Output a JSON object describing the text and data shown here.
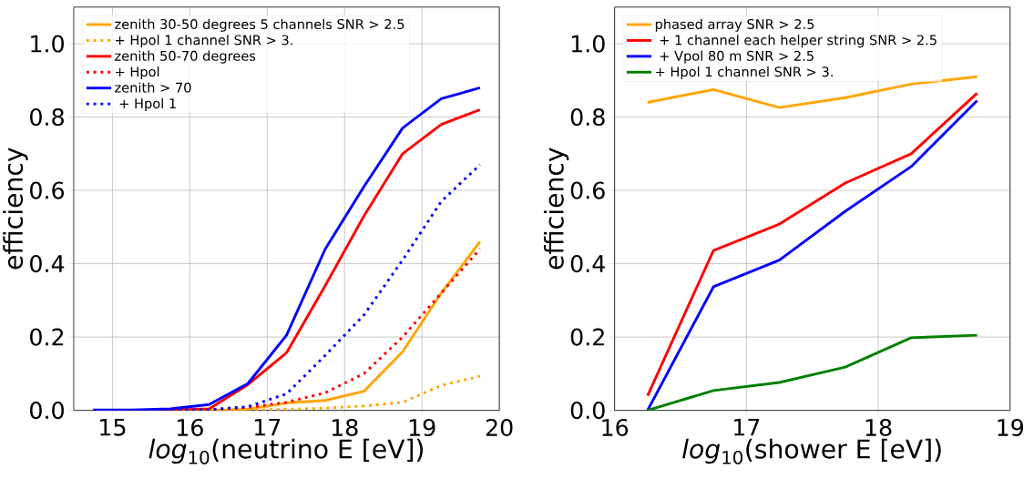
{
  "chart_data": [
    {
      "type": "line",
      "xlabel": "*log*$_{10}$(neutrino E [eV])",
      "ylabel": "efficiency",
      "x": [
        14.75,
        15.25,
        15.75,
        16.25,
        16.75,
        17.25,
        17.75,
        18.25,
        18.75,
        19.25,
        19.75
      ],
      "xlim": [
        14.5,
        20
      ],
      "ylim": [
        0,
        1.1
      ],
      "xticks": [
        15,
        16,
        17,
        18,
        19,
        20
      ],
      "yticks": [
        {
          "value": 0,
          "label": "0.0"
        },
        {
          "value": 0.2,
          "label": "0.2"
        },
        {
          "value": 0.4,
          "label": "0.4"
        },
        {
          "value": 0.6,
          "label": "0.6"
        },
        {
          "value": 0.8,
          "label": "0.8"
        },
        {
          "value": 1.0,
          "label": "1.0"
        }
      ],
      "grid": true,
      "legend": "top left",
      "series": [
        {
          "name": "zenith 30-50 degrees 5 channels SNR > 2.5",
          "color": "#ffa500",
          "line_style": "solid",
          "values": [
            null,
            null,
            0,
            0,
            0.003,
            0.02,
            0.027,
            0.052,
            0.16,
            0.32,
            0.46
          ]
        },
        {
          "name": "+ Hpol 1 channel SNR > 3.",
          "color": "#ffa500",
          "line_style": "dotted",
          "values": [
            null,
            null,
            0,
            0,
            0.001,
            0.003,
            0.006,
            0.012,
            0.022,
            0.068,
            0.093
          ]
        },
        {
          "name": "zenith 50-70 degrees",
          "color": "#ff0000",
          "line_style": "solid",
          "values": [
            0,
            0,
            0.001,
            0.004,
            0.07,
            0.157,
            0.34,
            0.53,
            0.7,
            0.78,
            0.82
          ]
        },
        {
          "name": "+ Hpol",
          "color": "#ff0000",
          "line_style": "dotted",
          "values": [
            0,
            0,
            0,
            0.002,
            0.008,
            0.022,
            0.048,
            0.1,
            0.2,
            0.32,
            0.44
          ]
        },
        {
          "name": "zenith > 70",
          "color": "#0000ff",
          "line_style": "solid",
          "values": [
            0.001,
            0.001,
            0.004,
            0.016,
            0.073,
            0.205,
            0.44,
            0.61,
            0.77,
            0.85,
            0.88
          ]
        },
        {
          "name": " + Hpol 1",
          "color": "#0000ff",
          "line_style": "dotted",
          "values": [
            0,
            0,
            0,
            0.002,
            0.01,
            0.045,
            0.15,
            0.26,
            0.41,
            0.57,
            0.67
          ]
        }
      ]
    },
    {
      "type": "line",
      "xlabel": "*log*$_{10}$(shower E [eV])",
      "ylabel": "efficiency",
      "x": [
        16.25,
        16.75,
        17.25,
        17.75,
        18.25,
        18.75
      ],
      "xlim": [
        16,
        19
      ],
      "ylim": [
        0,
        1.1
      ],
      "xticks": [
        16,
        17,
        18,
        19
      ],
      "yticks": [
        {
          "value": 0,
          "label": "0.0"
        },
        {
          "value": 0.2,
          "label": "0.2"
        },
        {
          "value": 0.4,
          "label": "0.4"
        },
        {
          "value": 0.6,
          "label": "0.6"
        },
        {
          "value": 0.8,
          "label": "0.8"
        },
        {
          "value": 1.0,
          "label": "1.0"
        }
      ],
      "grid": true,
      "legend": "top left",
      "series": [
        {
          "name": "phased array SNR > 2.5",
          "color": "#ffa500",
          "line_style": "solid",
          "values": [
            0.84,
            0.875,
            0.826,
            0.853,
            0.89,
            0.91
          ]
        },
        {
          "name": " + 1 channel each helper string SNR > 2.5",
          "color": "#ff0000",
          "line_style": "solid",
          "values": [
            0.04,
            0.436,
            0.508,
            0.62,
            0.7,
            0.865
          ]
        },
        {
          "name": " + Vpol 80 m SNR > 2.5",
          "color": "#0000ff",
          "line_style": "solid",
          "values": [
            0.0,
            0.337,
            0.41,
            0.543,
            0.665,
            0.845
          ]
        },
        {
          "name": "+ Hpol 1 channel SNR > 3.",
          "color": "#008000",
          "line_style": "solid",
          "values": [
            0.0,
            0.054,
            0.076,
            0.118,
            0.198,
            0.205
          ]
        }
      ]
    }
  ]
}
